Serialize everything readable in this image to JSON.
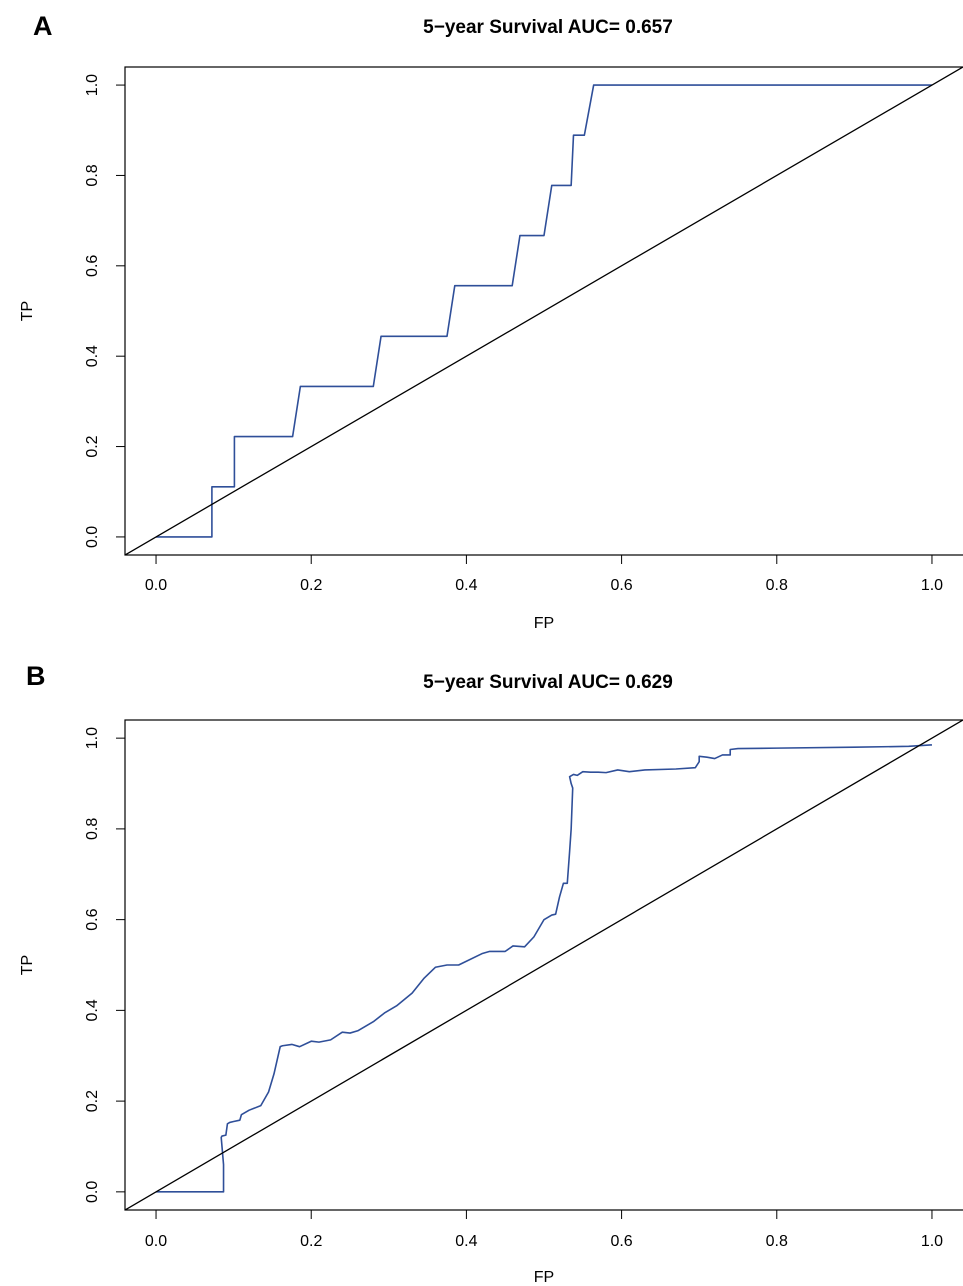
{
  "chart_data": [
    {
      "type": "line",
      "panel": "A",
      "title": "5−year Survival AUC= 0.657",
      "xlabel": "FP",
      "ylabel": "TP",
      "xlim": [
        -0.04,
        1.04
      ],
      "ylim": [
        -0.04,
        1.04
      ],
      "xticks": [
        "0.0",
        "0.2",
        "0.4",
        "0.6",
        "0.8",
        "1.0"
      ],
      "yticks": [
        "0.0",
        "0.2",
        "0.4",
        "0.6",
        "0.8",
        "1.0"
      ],
      "grid": false,
      "colors": {
        "roc": "#2f4f99",
        "reference": "#000000"
      },
      "series": [
        {
          "x": [
            0.0,
            0.072,
            0.072,
            0.101,
            0.101,
            0.176,
            0.186,
            0.28,
            0.29,
            0.375,
            0.385,
            0.459,
            0.469,
            0.5,
            0.51,
            0.535,
            0.538,
            0.552,
            0.564,
            1.0
          ],
          "y": [
            0.0,
            0.0,
            0.111,
            0.111,
            0.222,
            0.222,
            0.333,
            0.333,
            0.444,
            0.444,
            0.556,
            0.556,
            0.667,
            0.667,
            0.778,
            0.778,
            0.889,
            0.889,
            1.0,
            1.0
          ]
        },
        {
          "x": [
            -0.04,
            1.04
          ],
          "y": [
            -0.04,
            1.04
          ]
        }
      ]
    },
    {
      "type": "line",
      "panel": "B",
      "title": "5−year Survival AUC= 0.629",
      "xlabel": "FP",
      "ylabel": "TP",
      "xlim": [
        -0.04,
        1.04
      ],
      "ylim": [
        -0.04,
        1.04
      ],
      "xticks": [
        "0.0",
        "0.2",
        "0.4",
        "0.6",
        "0.8",
        "1.0"
      ],
      "yticks": [
        "0.0",
        "0.2",
        "0.4",
        "0.6",
        "0.8",
        "1.0"
      ],
      "grid": false,
      "colors": {
        "roc": "#2f4f99",
        "reference": "#000000"
      },
      "series": [
        {
          "x": [
            0.0,
            0.087,
            0.087,
            0.084,
            0.085,
            0.09,
            0.092,
            0.095,
            0.1,
            0.108,
            0.11,
            0.12,
            0.135,
            0.145,
            0.152,
            0.16,
            0.163,
            0.175,
            0.185,
            0.2,
            0.21,
            0.225,
            0.24,
            0.25,
            0.26,
            0.28,
            0.295,
            0.31,
            0.33,
            0.345,
            0.36,
            0.375,
            0.39,
            0.42,
            0.43,
            0.45,
            0.46,
            0.475,
            0.487,
            0.5,
            0.51,
            0.515,
            0.52,
            0.525,
            0.53,
            0.533,
            0.535,
            0.537,
            0.535,
            0.533,
            0.538,
            0.543,
            0.55,
            0.56,
            0.57,
            0.58,
            0.595,
            0.61,
            0.63,
            0.67,
            0.695,
            0.7,
            0.7,
            0.71,
            0.72,
            0.73,
            0.74,
            0.74,
            0.75,
            0.8,
            0.9,
            0.97,
            0.998,
            1.0
          ],
          "y": [
            0.0,
            0.0,
            0.06,
            0.12,
            0.123,
            0.125,
            0.15,
            0.153,
            0.155,
            0.158,
            0.17,
            0.18,
            0.19,
            0.22,
            0.26,
            0.32,
            0.322,
            0.325,
            0.32,
            0.332,
            0.33,
            0.335,
            0.352,
            0.35,
            0.355,
            0.375,
            0.395,
            0.41,
            0.438,
            0.47,
            0.495,
            0.5,
            0.5,
            0.525,
            0.53,
            0.53,
            0.542,
            0.54,
            0.562,
            0.6,
            0.61,
            0.612,
            0.65,
            0.68,
            0.68,
            0.75,
            0.8,
            0.89,
            0.9,
            0.915,
            0.92,
            0.918,
            0.926,
            0.925,
            0.925,
            0.924,
            0.93,
            0.926,
            0.93,
            0.932,
            0.935,
            0.948,
            0.96,
            0.958,
            0.955,
            0.963,
            0.963,
            0.975,
            0.977,
            0.978,
            0.98,
            0.982,
            0.985,
            0.985
          ]
        },
        {
          "x": [
            -0.04,
            1.04
          ],
          "y": [
            -0.04,
            1.04
          ]
        }
      ]
    }
  ]
}
